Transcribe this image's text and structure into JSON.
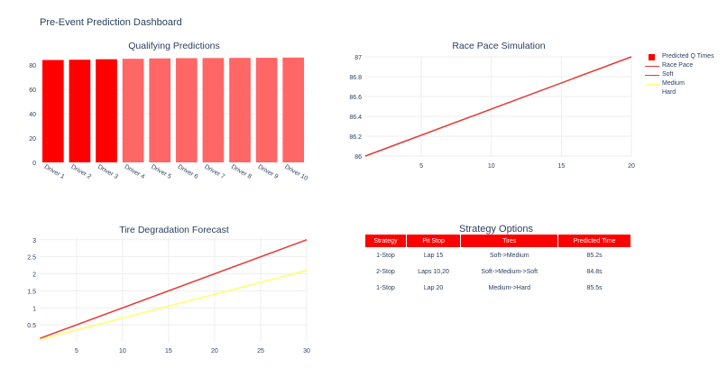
{
  "page": {
    "title": "Pre-Event Prediction Dashboard"
  },
  "colors": {
    "red": "#ff0000",
    "light_red": "#ff6666",
    "soft_line": "#e53935",
    "medium_line": "#ffff66",
    "grid": "#eeeeee",
    "text": "#2a3f5f"
  },
  "legend": {
    "items": [
      {
        "label": "Predicted Q Times",
        "kind": "square",
        "color": "#ff0000"
      },
      {
        "label": "Race Pace",
        "kind": "line",
        "color": "#e53935"
      },
      {
        "label": "Soft",
        "kind": "line",
        "color": "#e53935"
      },
      {
        "label": "Medium",
        "kind": "line",
        "color": "#ffff66"
      },
      {
        "label": "Hard",
        "kind": "none",
        "color": ""
      }
    ]
  },
  "chart_data": [
    {
      "type": "bar",
      "title": "Qualifying Predictions",
      "categories": [
        "Driver 1",
        "Driver 2",
        "Driver 3",
        "Driver 4",
        "Driver 5",
        "Driver 6",
        "Driver 7",
        "Driver 8",
        "Driver 9",
        "Driver 10"
      ],
      "values": [
        84.2,
        84.4,
        84.8,
        85.2,
        85.5,
        85.7,
        85.8,
        85.9,
        86.0,
        86.2
      ],
      "bar_colors": [
        "#ff0000",
        "#ff0000",
        "#ff0000",
        "#ff6666",
        "#ff6666",
        "#ff6666",
        "#ff6666",
        "#ff6666",
        "#ff6666",
        "#ff6666"
      ],
      "yticks": [
        0,
        20,
        40,
        60,
        80
      ],
      "ylim": [
        0,
        90.5
      ],
      "series_name": "Predicted Q Times"
    },
    {
      "type": "line",
      "title": "Race Pace Simulation",
      "series": [
        {
          "name": "Race Pace",
          "x": [
            1,
            20
          ],
          "y": [
            86.0,
            87.0
          ],
          "color": "#e53935"
        }
      ],
      "xlim": [
        1,
        20
      ],
      "ylim": [
        86.0,
        87.0
      ],
      "xticks": [
        5,
        10,
        15,
        20
      ],
      "yticks": [
        86,
        86.2,
        86.4,
        86.6,
        86.8,
        87
      ],
      "ytick_labels": [
        "86",
        "86.2",
        "86.4",
        "86.6",
        "86.8",
        "87"
      ]
    },
    {
      "type": "line",
      "title": "Tire Degradation Forecast",
      "series": [
        {
          "name": "Soft",
          "x": [
            1,
            30
          ],
          "y": [
            0.1,
            3.0
          ],
          "color": "#e53935"
        },
        {
          "name": "Medium",
          "x": [
            1,
            30
          ],
          "y": [
            0.07,
            2.1
          ],
          "color": "#ffff66"
        }
      ],
      "xlim": [
        1,
        30
      ],
      "ylim": [
        0,
        3.1
      ],
      "xticks": [
        5,
        10,
        15,
        20,
        25,
        30
      ],
      "yticks": [
        0.5,
        1,
        1.5,
        2,
        2.5,
        3
      ],
      "ytick_labels": [
        "0.5",
        "1",
        "1.5",
        "2",
        "2.5",
        "3"
      ]
    },
    {
      "type": "table",
      "title": "Strategy Options",
      "columns": [
        "Strategy",
        "Pit Stop",
        "Tires",
        "Predicted Time"
      ],
      "rows": [
        [
          "1-Stop",
          "Lap 15",
          "Soft->Medium",
          "85.2s"
        ],
        [
          "2-Stop",
          "Laps 10,20",
          "Soft->Medium->Soft",
          "84.8s"
        ],
        [
          "1-Stop",
          "Lap 20",
          "Medium->Hard",
          "85.5s"
        ]
      ]
    }
  ]
}
